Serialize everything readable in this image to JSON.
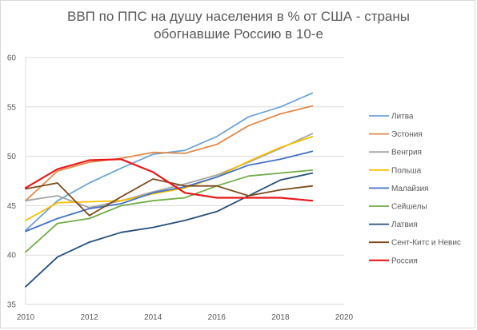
{
  "chart_data": {
    "type": "line",
    "title_line1": "ВВП по ППС на душу населения в % от США - страны",
    "title_line2": "обогнавшие Россию в 10-е",
    "xlim": [
      2010,
      2020
    ],
    "ylim": [
      35,
      60
    ],
    "x_ticks": [
      "2010",
      "2012",
      "2014",
      "2016",
      "2018",
      "2020"
    ],
    "y_ticks": [
      "35",
      "40",
      "45",
      "50",
      "55",
      "60"
    ],
    "grid": "horizontal",
    "legend_position": "right",
    "x": [
      2010,
      2011,
      2012,
      2013,
      2014,
      2015,
      2016,
      2017,
      2018,
      2019
    ],
    "series": [
      {
        "name": "Литва",
        "color": "#6fa3d5",
        "width": 1.8,
        "values": [
          42.5,
          45.5,
          47.3,
          48.8,
          50.2,
          50.6,
          52.0,
          54.0,
          55.0,
          56.4
        ]
      },
      {
        "name": "Эстония",
        "color": "#e08a4a",
        "width": 1.8,
        "values": [
          45.5,
          48.5,
          49.4,
          49.8,
          50.4,
          50.3,
          51.2,
          53.1,
          54.3,
          55.1
        ]
      },
      {
        "name": "Венгрия",
        "color": "#a5a5a5",
        "width": 1.8,
        "values": [
          45.5,
          46.0,
          44.8,
          45.5,
          46.4,
          47.2,
          48.1,
          49.4,
          50.8,
          52.3
        ]
      },
      {
        "name": "Польша",
        "color": "#f5c000",
        "width": 1.8,
        "values": [
          43.5,
          45.3,
          45.4,
          45.5,
          46.2,
          46.8,
          47.9,
          49.5,
          50.9,
          52.0
        ]
      },
      {
        "name": "Малайзия",
        "color": "#4472c4",
        "width": 1.8,
        "values": [
          42.4,
          43.7,
          44.7,
          45.2,
          46.3,
          46.9,
          47.9,
          49.1,
          49.7,
          50.5
        ]
      },
      {
        "name": "Сейшелы",
        "color": "#70ad47",
        "width": 1.8,
        "values": [
          40.3,
          43.2,
          43.7,
          45.0,
          45.5,
          45.8,
          47.0,
          48.0,
          48.3,
          48.6
        ]
      },
      {
        "name": "Латвия",
        "color": "#264f78",
        "width": 1.8,
        "values": [
          36.8,
          39.8,
          41.3,
          42.3,
          42.8,
          43.5,
          44.4,
          46.0,
          47.6,
          48.3
        ]
      },
      {
        "name": "Сент-Китс и Невис",
        "color": "#7b4a1e",
        "width": 1.8,
        "values": [
          46.7,
          47.3,
          44.0,
          45.9,
          47.7,
          47.0,
          47.0,
          46.0,
          46.6,
          47.0
        ]
      },
      {
        "name": "Россия",
        "color": "#e8191b",
        "width": 2.2,
        "values": [
          46.8,
          48.7,
          49.6,
          49.7,
          48.4,
          46.3,
          45.8,
          45.8,
          45.8,
          45.5
        ]
      }
    ]
  }
}
